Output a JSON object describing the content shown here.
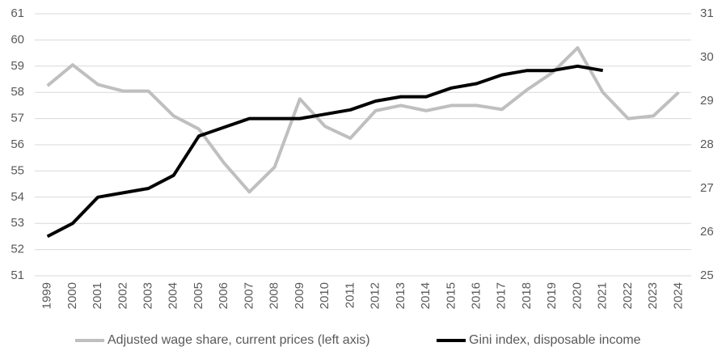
{
  "chart_data": {
    "type": "line",
    "categories": [
      "1999",
      "2000",
      "2001",
      "2002",
      "2003",
      "2004",
      "2005",
      "2006",
      "2007",
      "2008",
      "2009",
      "2010",
      "2011",
      "2012",
      "2013",
      "2014",
      "2015",
      "2016",
      "2017",
      "2018",
      "2019",
      "2020",
      "2021",
      "2022",
      "2023",
      "2024"
    ],
    "series": [
      {
        "name": "Adjusted wage share, current prices (left axis)",
        "color": "#bfbfbf",
        "values": [
          58.25,
          59.05,
          58.3,
          58.05,
          58.05,
          57.1,
          56.6,
          55.3,
          54.2,
          55.15,
          57.75,
          56.7,
          56.25,
          57.3,
          57.5,
          57.3,
          57.5,
          57.5,
          57.35,
          58.1,
          58.75,
          59.7,
          58.0,
          57.0,
          57.1,
          58.0
        ]
      },
      {
        "name": "Gini index, disposable income",
        "color": "#000000",
        "axis": "y2",
        "values": [
          25.9,
          26.2,
          26.8,
          26.9,
          27.0,
          27.3,
          28.2,
          28.4,
          28.6,
          28.6,
          28.6,
          28.7,
          28.8,
          29.0,
          29.1,
          29.1,
          29.3,
          29.4,
          29.6,
          29.7,
          29.7,
          29.8,
          29.7,
          null,
          null,
          null
        ]
      }
    ],
    "ylim": [
      51,
      61
    ],
    "yticks": [
      51,
      52,
      53,
      54,
      55,
      56,
      57,
      58,
      59,
      60,
      61
    ],
    "y2lim": [
      25,
      31
    ],
    "y2ticks": [
      25,
      26,
      27,
      28,
      29,
      30,
      31
    ],
    "grid": true,
    "legend": "bottom"
  }
}
